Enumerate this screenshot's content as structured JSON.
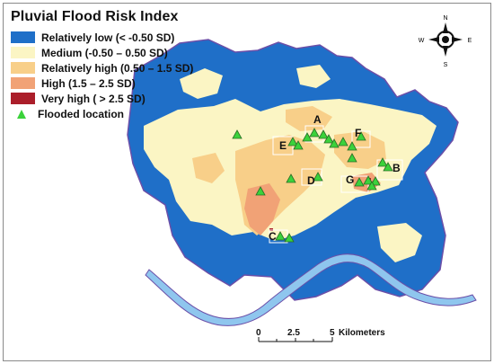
{
  "title": "Pluvial Flood Risk Index",
  "legend": [
    {
      "label": "Relatively low (< -0.50 SD)",
      "color": "#1f6fc8"
    },
    {
      "label": "Medium (-0.50 – 0.50 SD)",
      "color": "#fbf5c4"
    },
    {
      "label": "Relatively high (0.50 – 1.5 SD)",
      "color": "#f8cf89"
    },
    {
      "label": "High (1.5 – 2.5 SD)",
      "color": "#f1a276"
    },
    {
      "label": "Very high ( > 2.5 SD)",
      "color": "#ab1e2a"
    },
    {
      "label": "Flooded location",
      "color": "#3bd23b",
      "symbol": "triangle"
    }
  ],
  "site_labels": [
    "A",
    "B",
    "C",
    "D",
    "E",
    "F",
    "G"
  ],
  "scale_bar": {
    "ticks": [
      "0",
      "2.5",
      "5"
    ],
    "unit": "Kilometers"
  },
  "north_arrow": {
    "n": "N",
    "e": "E",
    "s": "S",
    "w": "W"
  },
  "colors": {
    "river": "#8fc6ee",
    "border": "#6b4fa8",
    "marker": "#3bd23b",
    "marker_outline": "#2a6d25"
  }
}
